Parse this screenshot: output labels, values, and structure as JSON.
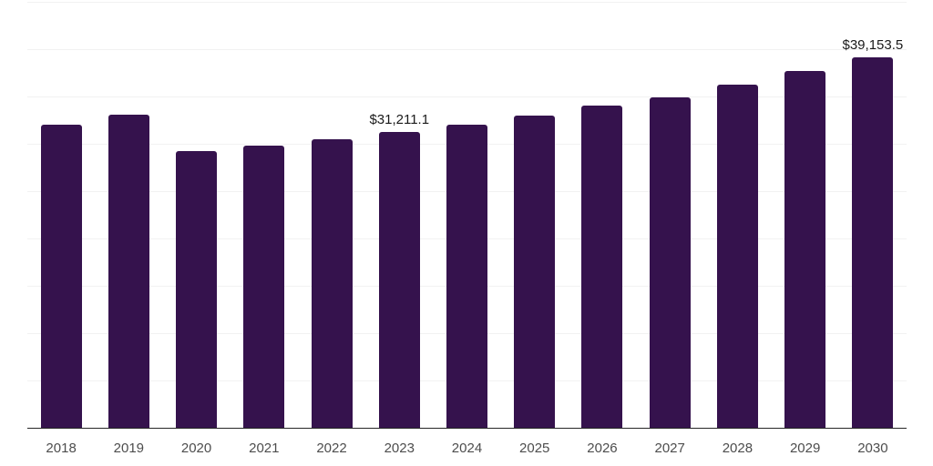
{
  "chart_data": {
    "type": "bar",
    "title": "",
    "xlabel": "",
    "ylabel": "",
    "categories": [
      "2018",
      "2019",
      "2020",
      "2021",
      "2022",
      "2023",
      "2024",
      "2025",
      "2026",
      "2027",
      "2028",
      "2029",
      "2030"
    ],
    "values": [
      32000,
      33050,
      29250,
      29820,
      30520,
      31211.1,
      32030,
      32960,
      34040,
      34930,
      36270,
      37710,
      39153.5
    ],
    "data_labels": [
      "",
      "",
      "",
      "",
      "",
      "$31,211.1",
      "",
      "",
      "",
      "",
      "",
      "",
      "$39,153.5"
    ],
    "ylim": [
      0,
      45000
    ],
    "gridline_step": 5000,
    "grid": "horizontal-only",
    "y_axis_labels_visible": false,
    "legend_position": "none",
    "colors": {
      "bar": "#35124d",
      "gridline": "#f2f2f2",
      "axis_line": "#262626",
      "tick_label": "#4d4d4d",
      "value_label": "#1a1a1a",
      "background": "#ffffff"
    }
  }
}
